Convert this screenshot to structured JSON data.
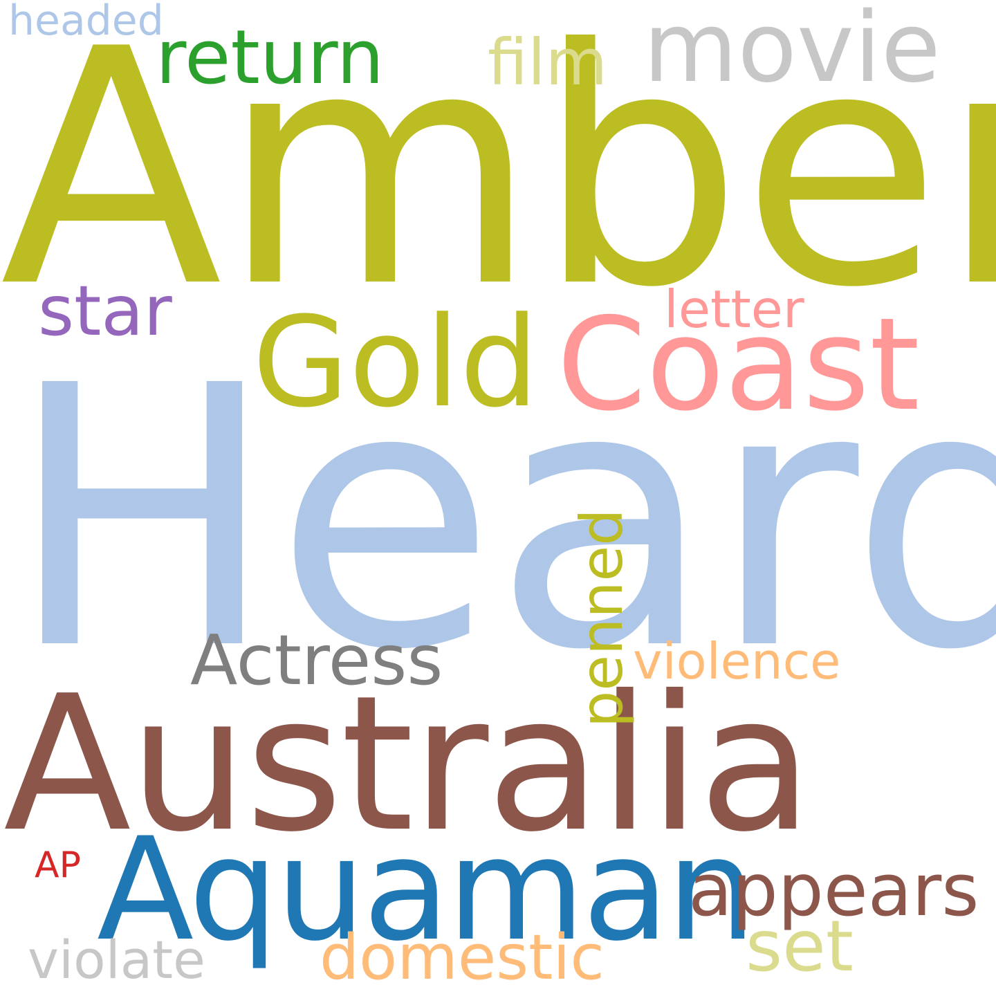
{
  "words": {
    "heard": {
      "text": "Heard",
      "color": "#aec7e8"
    },
    "amber": {
      "text": "Amber",
      "color": "#bcbd22"
    },
    "australia": {
      "text": "Australia",
      "color": "#8c564b"
    },
    "aquaman": {
      "text": "Aquaman",
      "color": "#1f77b4"
    },
    "coast": {
      "text": "Coast",
      "color": "#ff9896"
    },
    "gold": {
      "text": "Gold",
      "color": "#bcbd22"
    },
    "movie": {
      "text": "movie",
      "color": "#c7c7c7"
    },
    "return": {
      "text": "return",
      "color": "#2ca02c"
    },
    "film": {
      "text": "film",
      "color": "#dbdb8d"
    },
    "star": {
      "text": "star",
      "color": "#9467bd"
    },
    "letter": {
      "text": "letter",
      "color": "#ff9896"
    },
    "actress": {
      "text": "Actress",
      "color": "#7f7f7f"
    },
    "violence": {
      "text": "violence",
      "color": "#ffbb78"
    },
    "penned": {
      "text": "penned",
      "color": "#bcbd22"
    },
    "appears": {
      "text": "appears",
      "color": "#8c564b"
    },
    "ap": {
      "text": "AP",
      "color": "#d62728"
    },
    "violate": {
      "text": "violate",
      "color": "#c7c7c7"
    },
    "domestic": {
      "text": "domestic",
      "color": "#ffbb78"
    },
    "set": {
      "text": "set",
      "color": "#dbdb8d"
    },
    "headed": {
      "text": "headed",
      "color": "#aec7e8"
    }
  }
}
